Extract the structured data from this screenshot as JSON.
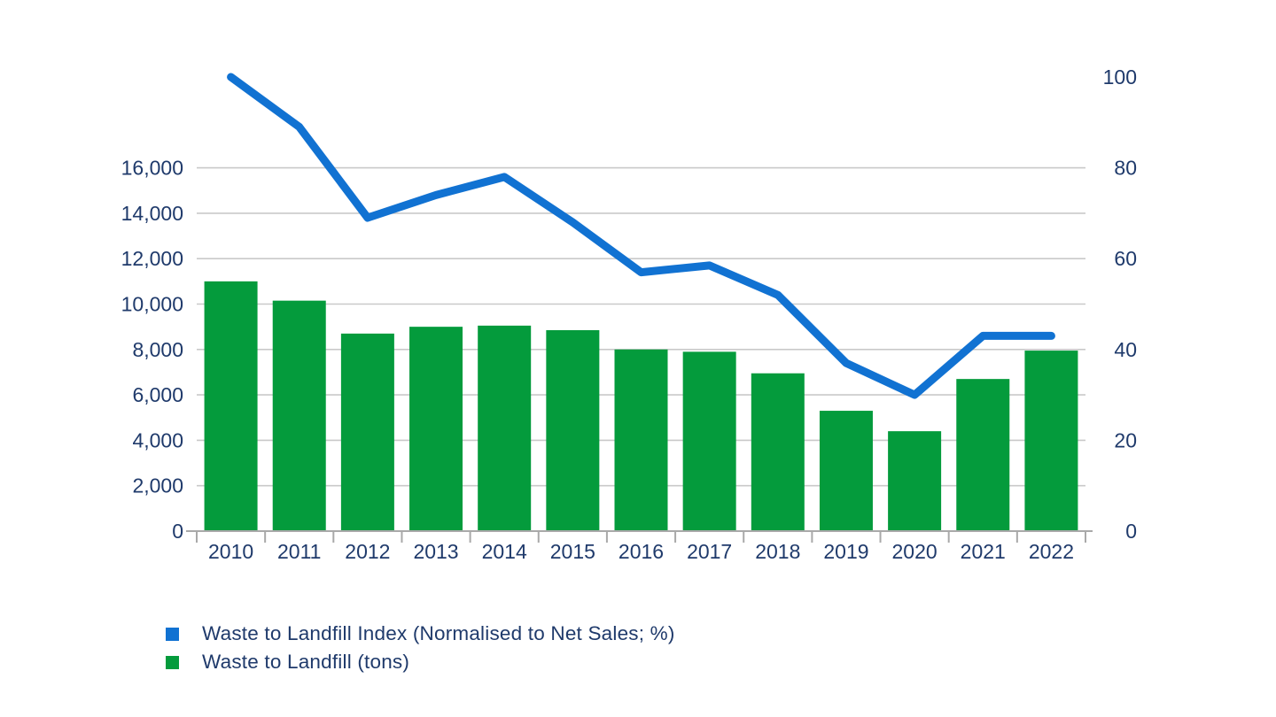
{
  "page": {
    "background": "#ffffff"
  },
  "colors": {
    "bar_green": "#049b3c",
    "line_blue": "#1172d2",
    "axis_text_navy": "#1f3a6b",
    "gridline_gray": "#c9c9c9",
    "axis_line_gray": "#a9a9a9"
  },
  "chart_data": {
    "type": "bar",
    "subtype": "combo-bar-line-dual-axis",
    "title": "",
    "categories": [
      "2010",
      "2011",
      "2012",
      "2013",
      "2014",
      "2015",
      "2016",
      "2017",
      "2018",
      "2019",
      "2020",
      "2021",
      "2022"
    ],
    "series": [
      {
        "name": "Waste to Landfill Index (Normalised to Net Sales; %)",
        "type": "line",
        "axis": "right",
        "color": "#1172d2",
        "values": [
          100,
          89,
          69,
          74,
          78,
          68,
          57,
          58.5,
          52,
          37,
          30,
          43,
          43
        ]
      },
      {
        "name": "Waste to Landfill (tons)",
        "type": "bar",
        "axis": "left",
        "color": "#049b3c",
        "values": [
          11000,
          10150,
          8700,
          9000,
          9050,
          8850,
          8000,
          7900,
          6950,
          5300,
          4400,
          6700,
          7950
        ]
      }
    ],
    "left_axis": {
      "min": 0,
      "max": 20000,
      "gridline_step": 2000,
      "tick_values": [
        0,
        2000,
        4000,
        6000,
        8000,
        10000,
        12000,
        14000,
        16000
      ],
      "tick_labels": [
        "0",
        "2,000",
        "4,000",
        "6,000",
        "8,000",
        "10,000",
        "12,000",
        "14,000",
        "16,000"
      ]
    },
    "right_axis": {
      "min": 0,
      "max": 100,
      "tick_values": [
        0,
        20,
        40,
        60,
        80,
        100
      ],
      "tick_labels": [
        "0",
        "20",
        "40",
        "60",
        "80",
        "100"
      ]
    },
    "grid": true,
    "legend_position": "bottom-left"
  },
  "legend": {
    "items": [
      {
        "label": "Waste to Landfill Index (Normalised to Net Sales; %)",
        "color": "#1172d2"
      },
      {
        "label": "Waste to Landfill (tons)",
        "color": "#049b3c"
      }
    ]
  }
}
